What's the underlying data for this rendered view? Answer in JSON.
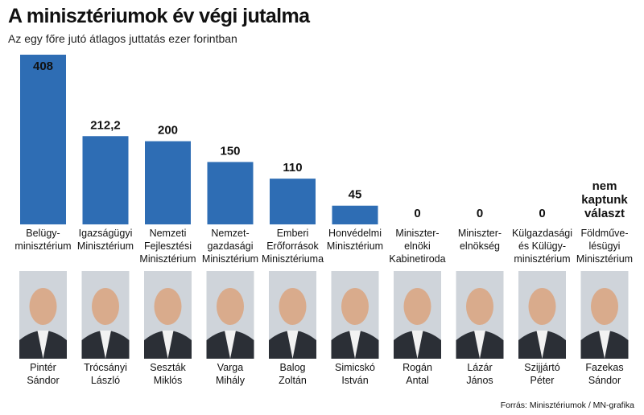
{
  "title": "A minisztériumok év végi jutalma",
  "subtitle": "Az egy főre jutó átlagos juttatás ezer forintban",
  "source": "Forrás: Minisztériumok / MN-grafika",
  "colors": {
    "bar": "#2e6db4",
    "photo_bg": "#cfd4da",
    "suit": "#2b2f36"
  },
  "chart_data": {
    "type": "bar",
    "categories": [
      "Belügy-\nminisztérium",
      "Igazságügyi\nMinisztérium",
      "Nemzeti\nFejlesztési\nMinisztérium",
      "Nemzet-\ngazdasági\nMinisztérium",
      "Emberi\nErőforrások\nMinisztériuma",
      "Honvédelmi\nMinisztérium",
      "Miniszter-\nelnöki\nKabinetiroda",
      "Miniszter-\nelnökség",
      "Külgazdasági\nés Külügy-\nminisztérium",
      "Földműve-\nlésügyi\nMinisztérium"
    ],
    "values": [
      408,
      212.2,
      200,
      150,
      110,
      45,
      0,
      0,
      0,
      null
    ],
    "value_labels": [
      "408",
      "212,2",
      "200",
      "150",
      "110",
      "45",
      "0",
      "0",
      "0",
      "nem\nkaptunk\nválaszt"
    ],
    "ylim": [
      0,
      408
    ],
    "grid": false,
    "legend": "none"
  },
  "people": [
    "Pintér\nSándor",
    "Trócsányi\nLászló",
    "Seszták\nMiklós",
    "Varga\nMihály",
    "Balog\nZoltán",
    "Simicskó\nIstván",
    "Rogán\nAntal",
    "Lázár\nJános",
    "Szijjártó\nPéter",
    "Fazekas\nSándor"
  ],
  "icons": {
    "portrait": "person-portrait-icon"
  }
}
